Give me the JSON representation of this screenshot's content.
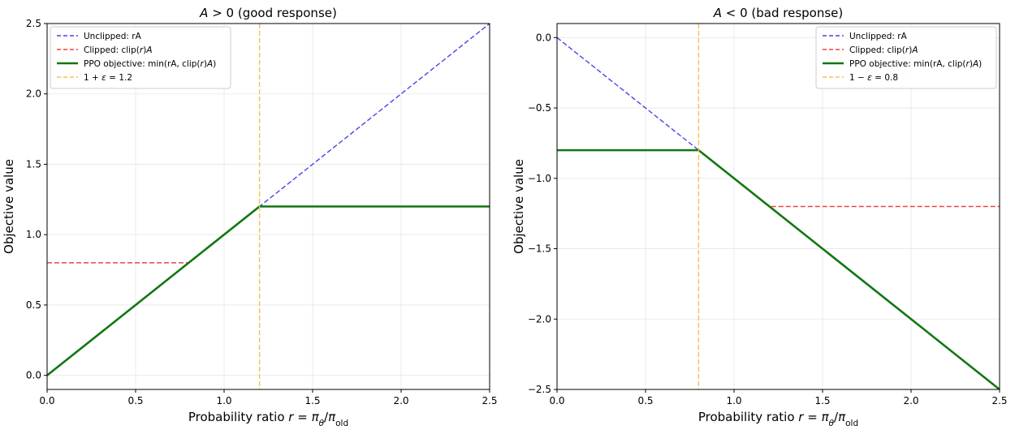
{
  "chart_data": [
    {
      "type": "line",
      "title": "A > 0 (good response)",
      "xlabel": "Probability ratio r = π_θ/π_old",
      "ylabel": "Objective value",
      "xlim": [
        0.0,
        2.5
      ],
      "ylim": [
        -0.1,
        2.5
      ],
      "xticks": [
        0.0,
        0.5,
        1.0,
        1.5,
        2.0,
        2.5
      ],
      "yticks": [
        0.0,
        0.5,
        1.0,
        1.5,
        2.0,
        2.5
      ],
      "xtick_labels": [
        "0.0",
        "0.5",
        "1.0",
        "1.5",
        "2.0",
        "2.5"
      ],
      "ytick_labels": [
        "0.0",
        "0.5",
        "1.0",
        "1.5",
        "2.0",
        "2.5"
      ],
      "grid": true,
      "legend_position": "top-left",
      "series": [
        {
          "name": "Unclipped: rA",
          "style": "dashed",
          "color": "#4444ee",
          "x": [
            0.0,
            2.5
          ],
          "y": [
            0.0,
            2.5
          ]
        },
        {
          "name": "Clipped: clip(r)A",
          "style": "dashed",
          "color": "#ee4444",
          "x": [
            0.0,
            0.8,
            1.2,
            2.5
          ],
          "y": [
            0.8,
            0.8,
            1.2,
            1.2
          ]
        },
        {
          "name": "PPO objective: min(rA, clip(r)A)",
          "style": "solid",
          "color": "#117711",
          "x": [
            0.0,
            1.2,
            2.5
          ],
          "y": [
            0.0,
            1.2,
            1.2
          ]
        },
        {
          "name": "1 + ε = 1.2",
          "style": "dashed-vertical",
          "color": "#f5c050",
          "x": [
            1.2
          ]
        }
      ]
    },
    {
      "type": "line",
      "title": "A < 0 (bad response)",
      "xlabel": "Probability ratio r = π_θ/π_old",
      "ylabel": "Objective value",
      "xlim": [
        0.0,
        2.5
      ],
      "ylim": [
        -2.5,
        0.1
      ],
      "xticks": [
        0.0,
        0.5,
        1.0,
        1.5,
        2.0,
        2.5
      ],
      "yticks": [
        0.0,
        -0.5,
        -1.0,
        -1.5,
        -2.0,
        -2.5
      ],
      "xtick_labels": [
        "0.0",
        "0.5",
        "1.0",
        "1.5",
        "2.0",
        "2.5"
      ],
      "ytick_labels": [
        "0.0",
        "−0.5",
        "−1.0",
        "−1.5",
        "−2.0",
        "−2.5"
      ],
      "grid": true,
      "legend_position": "top-right",
      "series": [
        {
          "name": "Unclipped: rA",
          "style": "dashed",
          "color": "#4444ee",
          "x": [
            0.0,
            2.5
          ],
          "y": [
            0.0,
            -2.5
          ]
        },
        {
          "name": "Clipped: clip(r)A",
          "style": "dashed",
          "color": "#ee4444",
          "x": [
            0.0,
            0.8,
            1.2,
            2.5
          ],
          "y": [
            -0.8,
            -0.8,
            -1.2,
            -1.2
          ]
        },
        {
          "name": "PPO objective: min(rA, clip(r)A)",
          "style": "solid",
          "color": "#117711",
          "x": [
            0.0,
            0.8,
            2.5
          ],
          "y": [
            -0.8,
            -0.8,
            -2.5
          ]
        },
        {
          "name": "1 − ε = 0.8",
          "style": "dashed-vertical",
          "color": "#f5c050",
          "x": [
            0.8
          ]
        }
      ]
    }
  ]
}
